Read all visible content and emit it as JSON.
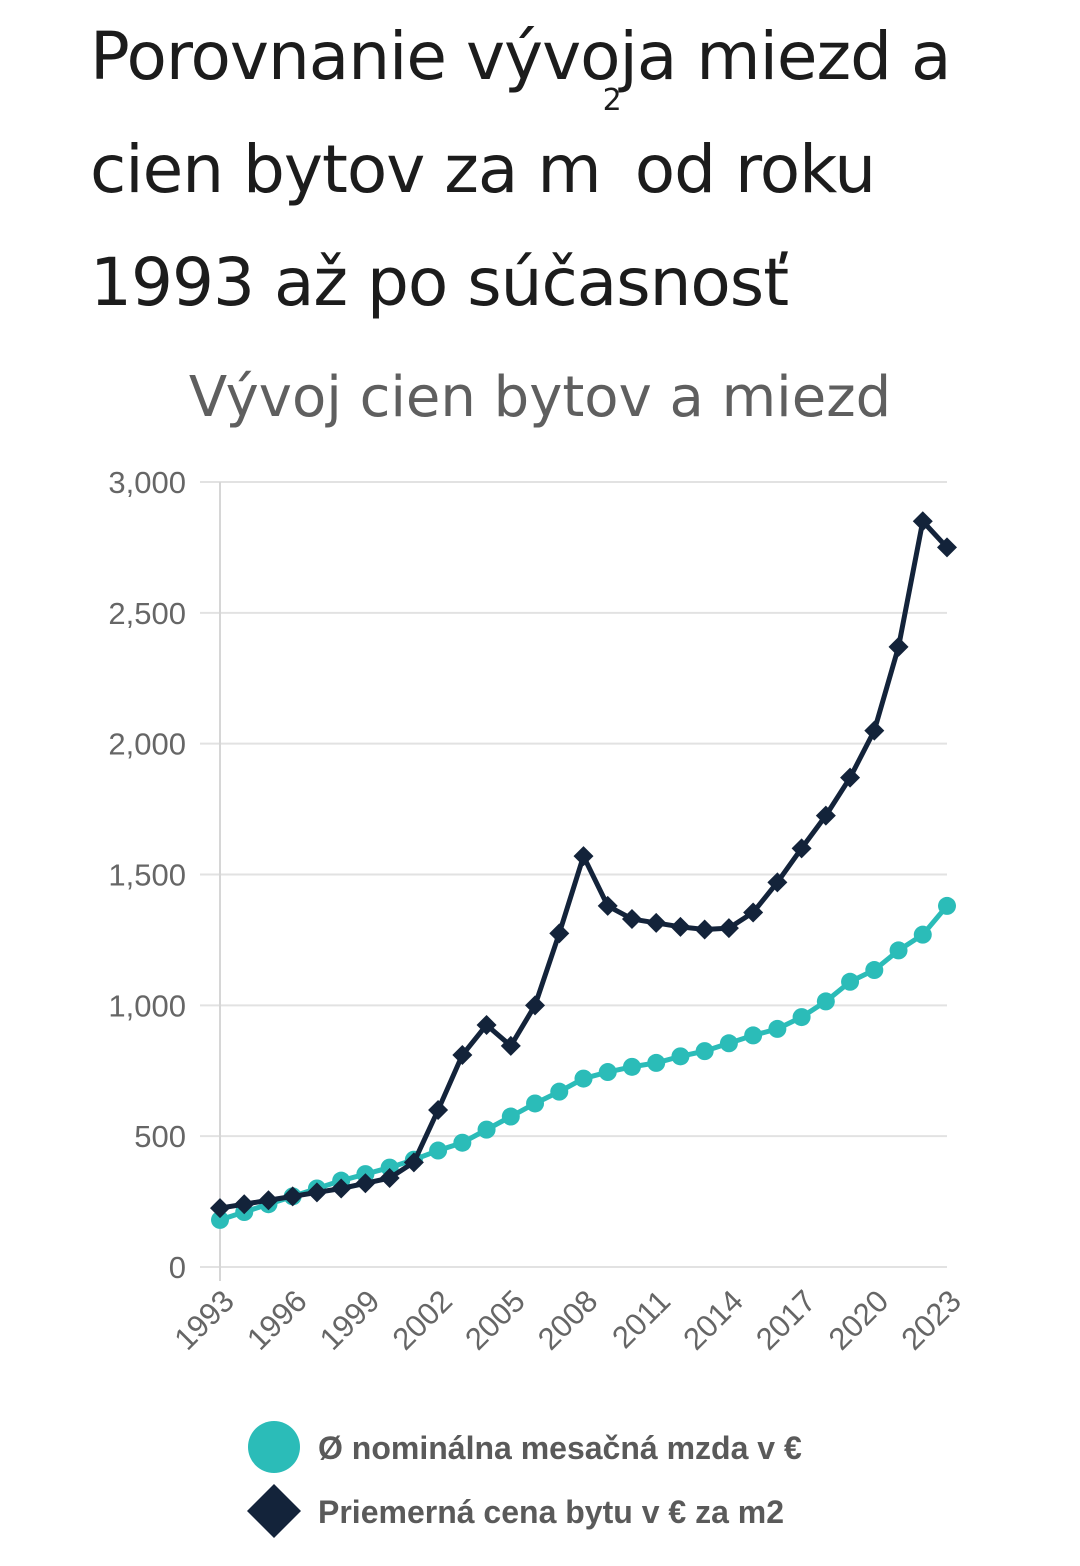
{
  "headline": {
    "line1": "Porovnanie vývoja miezd a",
    "line2_pre": "cien bytov za m",
    "line2_sup": "2",
    "line2_post": "od roku",
    "line3": "1993 až po súčasnosť"
  },
  "chart_data": {
    "type": "line",
    "title": "Vývoj cien bytov a miezd",
    "xlabel": "",
    "ylabel": "",
    "x": [
      1993,
      1994,
      1995,
      1996,
      1997,
      1998,
      1999,
      2000,
      2001,
      2002,
      2003,
      2004,
      2005,
      2006,
      2007,
      2008,
      2009,
      2010,
      2011,
      2012,
      2013,
      2014,
      2015,
      2016,
      2017,
      2018,
      2019,
      2020,
      2021,
      2022,
      2023
    ],
    "x_ticks": [
      "1993",
      "1996",
      "1999",
      "2002",
      "2005",
      "2008",
      "2011",
      "2014",
      "2017",
      "2020",
      "2023"
    ],
    "ylim": [
      0,
      3000
    ],
    "y_ticks": [
      "0",
      "500",
      "1,000",
      "1,500",
      "2,000",
      "2,500",
      "3,000"
    ],
    "grid": true,
    "legend_position": "bottom",
    "series": [
      {
        "name": "Ø nominálna mesačná mzda v €",
        "color": "#2bbcb8",
        "marker": "circle",
        "values": [
          180,
          210,
          240,
          270,
          300,
          330,
          355,
          380,
          410,
          445,
          475,
          525,
          575,
          625,
          670,
          720,
          745,
          765,
          780,
          805,
          825,
          855,
          885,
          910,
          955,
          1015,
          1090,
          1135,
          1210,
          1270,
          1380
        ]
      },
      {
        "name": "Priemerná cena bytu v € za m2",
        "color": "#13233a",
        "marker": "diamond",
        "values": [
          225,
          240,
          255,
          270,
          285,
          300,
          320,
          340,
          400,
          600,
          810,
          925,
          845,
          1000,
          1275,
          1570,
          1380,
          1330,
          1315,
          1300,
          1290,
          1295,
          1355,
          1470,
          1600,
          1725,
          1870,
          2050,
          2370,
          2850,
          2750
        ]
      }
    ]
  }
}
